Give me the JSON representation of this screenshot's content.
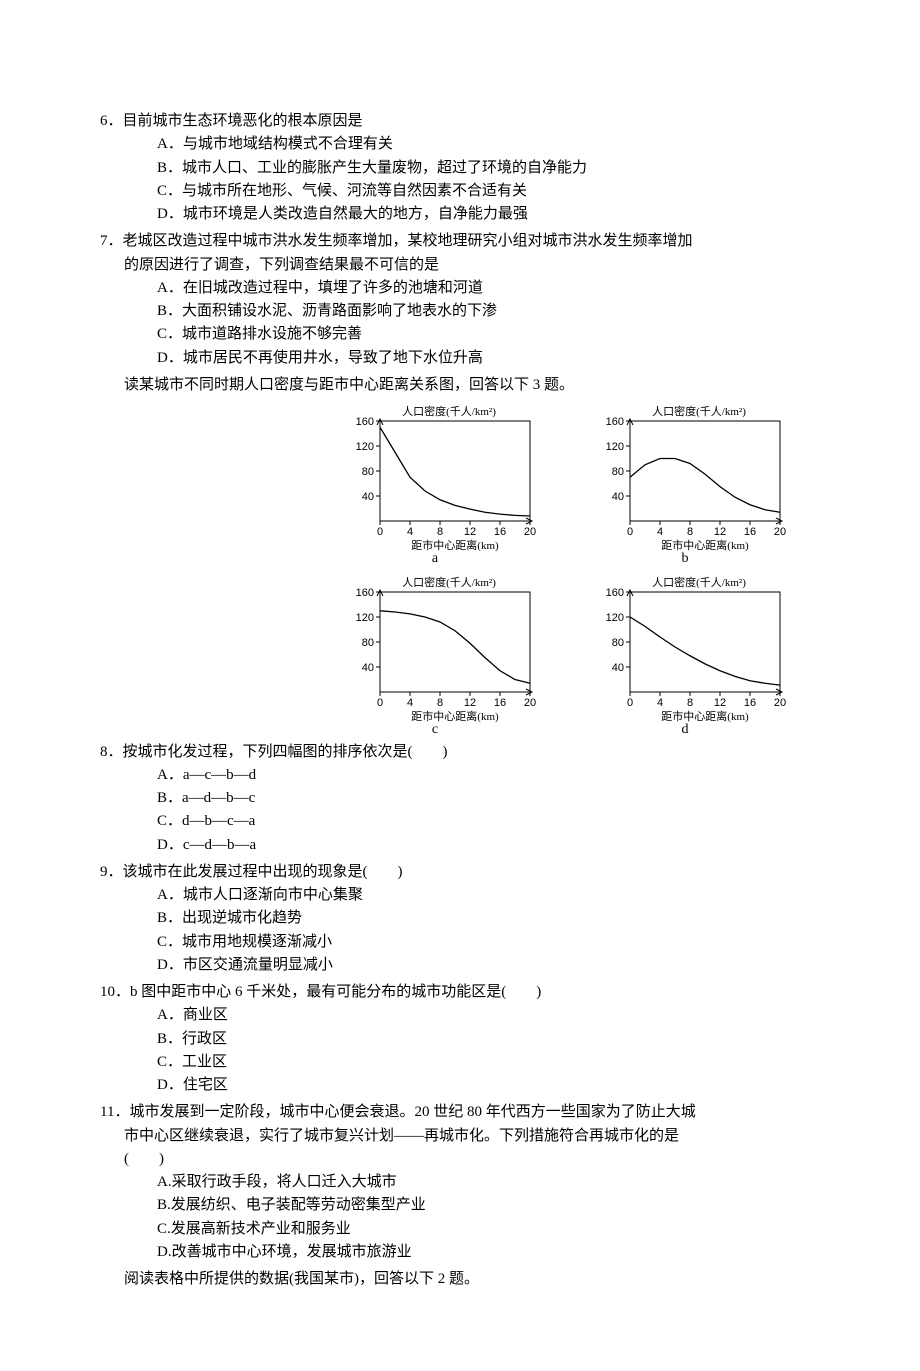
{
  "q6": {
    "num": "6．",
    "stem": "目前城市生态环境恶化的根本原因是",
    "paren": "（　　）",
    "opts": {
      "A": "A．与城市地域结构模式不合理有关",
      "B": "B．城市人口、工业的膨胀产生大量废物，超过了环境的自净能力",
      "C": "C．与城市所在地形、气候、河流等自然因素不合适有关",
      "D": "D．城市环境是人类改造自然最大的地方，自净能力最强"
    }
  },
  "q7": {
    "num": "7．",
    "stem_l1": "老城区改造过程中城市洪水发生频率增加，某校地理研究小组对城市洪水发生频率增加",
    "stem_l2": "的原因进行了调查，下列调查结果最不可信的是",
    "paren": "（　　）",
    "opts": {
      "A": "A．在旧城改造过程中，填埋了许多的池塘和河道",
      "B": "B．大面积铺设水泥、沥青路面影响了地表水的下渗",
      "C": "C．城市道路排水设施不够完善",
      "D": "D．城市居民不再使用井水，导致了地下水位升高"
    }
  },
  "intro_charts": "读某城市不同时期人口密度与距市中心距离关系图，回答以下 3 题。",
  "charts": {
    "ylabel": "人口密度(千人/km²)",
    "xlabel": "距市中心距离(km)",
    "yticks": [
      0,
      40,
      80,
      120,
      160
    ],
    "xticks": [
      0,
      4,
      8,
      12,
      16,
      20
    ],
    "ylim": [
      0,
      160
    ],
    "xlim": [
      0,
      20
    ],
    "frame_color": "#000000",
    "line_color": "#000000",
    "background": "#ffffff",
    "a": {
      "label": "a",
      "points": [
        [
          0,
          150
        ],
        [
          2,
          110
        ],
        [
          4,
          70
        ],
        [
          6,
          48
        ],
        [
          8,
          34
        ],
        [
          10,
          25
        ],
        [
          12,
          19
        ],
        [
          14,
          14
        ],
        [
          16,
          11
        ],
        [
          18,
          9
        ],
        [
          20,
          8
        ]
      ]
    },
    "b": {
      "label": "b",
      "points": [
        [
          0,
          70
        ],
        [
          2,
          90
        ],
        [
          4,
          100
        ],
        [
          6,
          100
        ],
        [
          8,
          92
        ],
        [
          10,
          75
        ],
        [
          12,
          55
        ],
        [
          14,
          38
        ],
        [
          16,
          26
        ],
        [
          18,
          18
        ],
        [
          20,
          14
        ]
      ]
    },
    "c": {
      "label": "c",
      "points": [
        [
          0,
          130
        ],
        [
          2,
          128
        ],
        [
          4,
          125
        ],
        [
          6,
          120
        ],
        [
          8,
          112
        ],
        [
          10,
          98
        ],
        [
          12,
          78
        ],
        [
          14,
          55
        ],
        [
          16,
          34
        ],
        [
          18,
          20
        ],
        [
          20,
          14
        ]
      ]
    },
    "d": {
      "label": "d",
      "points": [
        [
          0,
          120
        ],
        [
          2,
          105
        ],
        [
          4,
          88
        ],
        [
          6,
          72
        ],
        [
          8,
          58
        ],
        [
          10,
          45
        ],
        [
          12,
          34
        ],
        [
          14,
          25
        ],
        [
          16,
          18
        ],
        [
          18,
          14
        ],
        [
          20,
          11
        ]
      ]
    }
  },
  "q8": {
    "num": "8．",
    "stem": "按城市化发过程，下列四幅图的排序依次是(　　)",
    "opts": {
      "A": "A．a—c—b—d",
      "B": "B．a—d—b—c",
      "C": "C．d—b—c—a",
      "D": "D．c—d—b—a"
    }
  },
  "q9": {
    "num": "9．",
    "stem": "该城市在此发展过程中出现的现象是(　　)",
    "opts": {
      "A": "A．城市人口逐渐向市中心集聚",
      "B": "B．出现逆城市化趋势",
      "C": "C．城市用地规模逐渐减小",
      "D": "D．市区交通流量明显减小"
    }
  },
  "q10": {
    "num": "10．",
    "stem": "b 图中距市中心 6 千米处，最有可能分布的城市功能区是(　　)",
    "opts": {
      "A": "A．商业区",
      "B": "B．行政区",
      "C": "C．工业区",
      "D": "D．住宅区"
    }
  },
  "q11": {
    "num": "11．",
    "stem_l1": "城市发展到一定阶段，城市中心便会衰退。20 世纪 80 年代西方一些国家为了防止大城",
    "stem_l2": "市中心区继续衰退，实行了城市复兴计划——再城市化。下列措施符合再城市化的是",
    "paren": "(　　)",
    "opts": {
      "A": "A.采取行政手段，将人口迁入大城市",
      "B": "B.发展纺织、电子装配等劳动密集型产业",
      "C": "C.发展高新技术产业和服务业",
      "D": "D.改善城市中心环境，发展城市旅游业"
    }
  },
  "intro_table": "阅读表格中所提供的数据(我国某市)，回答以下 2 题。"
}
